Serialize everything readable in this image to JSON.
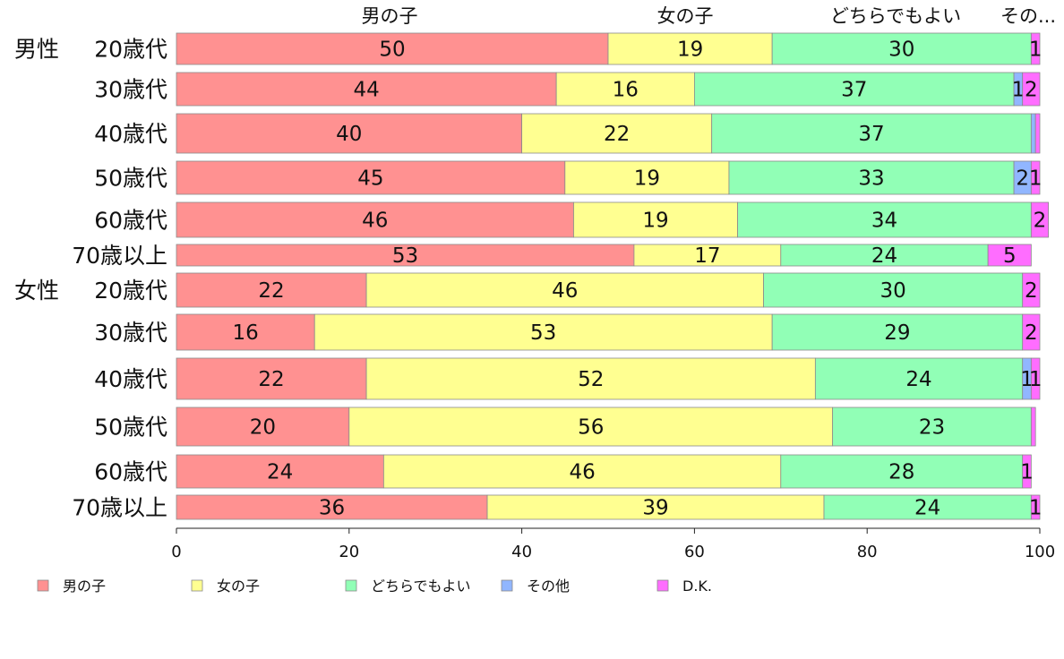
{
  "chart_data": {
    "type": "bar",
    "orientation": "horizontal",
    "stacked": true,
    "xlim": [
      0,
      100
    ],
    "xticks": [
      "0",
      "20",
      "40",
      "60",
      "80",
      "100"
    ],
    "header_labels": [
      "男の子",
      "女の子",
      "どちらでもよい",
      "その..."
    ],
    "group_labels": [
      "男性",
      "女性"
    ],
    "categories": [
      "20歳代",
      "30歳代",
      "40歳代",
      "50歳代",
      "60歳代",
      "70歳以上",
      "20歳代",
      "30歳代",
      "40歳代",
      "50歳代",
      "60歳代",
      "70歳以上"
    ],
    "series": [
      {
        "name": "男の子",
        "color": "#ff9191",
        "values": [
          50,
          44,
          40,
          45,
          46,
          53,
          22,
          16,
          22,
          20,
          24,
          36
        ]
      },
      {
        "name": "女の子",
        "color": "#ffff91",
        "values": [
          19,
          16,
          22,
          19,
          19,
          17,
          46,
          53,
          52,
          56,
          46,
          39
        ]
      },
      {
        "name": "どちらでもよい",
        "color": "#91ffb6",
        "values": [
          30,
          37,
          37,
          33,
          34,
          24,
          30,
          29,
          24,
          23,
          28,
          24
        ]
      },
      {
        "name": "その他",
        "color": "#91b6ff",
        "values": [
          0,
          1,
          0.5,
          2,
          0,
          0,
          0,
          0,
          1,
          0,
          0,
          0
        ]
      },
      {
        "name": "D.K.",
        "color": "#ff6dff",
        "values": [
          1,
          2,
          0.5,
          1,
          2,
          5,
          2,
          2,
          1,
          0.5,
          1,
          1
        ]
      }
    ],
    "legend_position": "bottom",
    "grid": false
  }
}
